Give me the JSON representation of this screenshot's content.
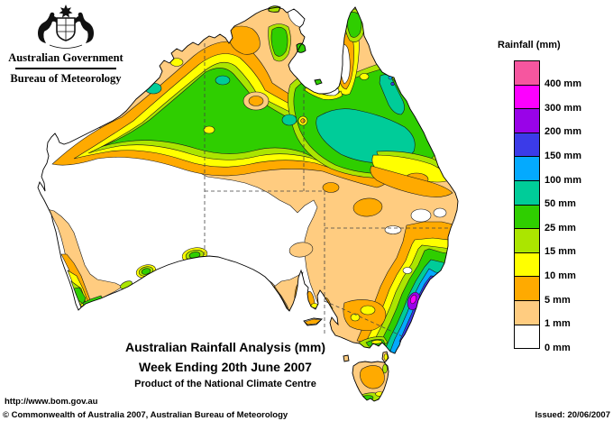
{
  "header": {
    "gov": "Australian Government",
    "bureau": "Bureau of Meteorology"
  },
  "legend": {
    "title": "Rainfall (mm)",
    "bands": [
      {
        "min_mm": 400,
        "label": "400 mm",
        "color": "pink"
      },
      {
        "min_mm": 300,
        "label": "300 mm",
        "color": "magenta"
      },
      {
        "min_mm": 200,
        "label": "200 mm",
        "color": "purple"
      },
      {
        "min_mm": 150,
        "label": "150 mm",
        "color": "blue"
      },
      {
        "min_mm": 100,
        "label": "100 mm",
        "color": "lightblue"
      },
      {
        "min_mm": 50,
        "label": "50 mm",
        "color": "teal"
      },
      {
        "min_mm": 25,
        "label": "25 mm",
        "color": "green"
      },
      {
        "min_mm": 15,
        "label": "15 mm",
        "color": "yellowgreen"
      },
      {
        "min_mm": 10,
        "label": "10 mm",
        "color": "yellow"
      },
      {
        "min_mm": 5,
        "label": "5 mm",
        "color": "orange"
      },
      {
        "min_mm": 1,
        "label": "1 mm",
        "color": "tan"
      },
      {
        "min_mm": 0,
        "label": "0 mm",
        "color": "white"
      }
    ]
  },
  "palette": {
    "pink": "#F6569F",
    "magenta": "#FD00FF",
    "purple": "#9903E8",
    "blue": "#3B3BE8",
    "lightblue": "#04AAFE",
    "teal": "#00CC99",
    "green": "#2FCE00",
    "yellowgreen": "#ABE500",
    "yellow": "#FFFF00",
    "orange": "#FFAA00",
    "tan": "#FFCC80",
    "white": "#FFFFFF"
  },
  "title_block": {
    "line1": "Australian Rainfall Analysis (mm)",
    "line2": "Week Ending 20th June 2007",
    "line3": "Product of the National Climate Centre"
  },
  "footer": {
    "url": "http://www.bom.gov.au",
    "copyright": "© Commonwealth of Australia 2007, Australian Bureau of Meteorology",
    "issued": "Issued: 20/06/2007"
  },
  "chart_data": {
    "type": "contour-map",
    "title": "Australian Rainfall Analysis (mm)",
    "period": "Week Ending 20th June 2007",
    "units": "mm",
    "levels_mm": [
      0,
      1,
      5,
      10,
      15,
      25,
      50,
      100,
      150,
      200,
      300,
      400
    ],
    "legend_position": "right",
    "region_notes": [
      "Kimberley / Top End / central NT: broad 25-50 mm band with 50-100 mm pockets",
      "Central and northern Queensland: large 50-100 mm area",
      "Cape York interior: under 5 mm strip",
      "Western Australia interior and central SA: 0-1 mm (white)",
      "Southwest WA coast: 5-25 mm with 25-50 mm at the corner",
      "NSW south coast: steep gradient to 150-200 mm with a 200-400 mm core",
      "Tasmania: mostly 1-10 mm with 15-50 mm on the south coast"
    ]
  }
}
